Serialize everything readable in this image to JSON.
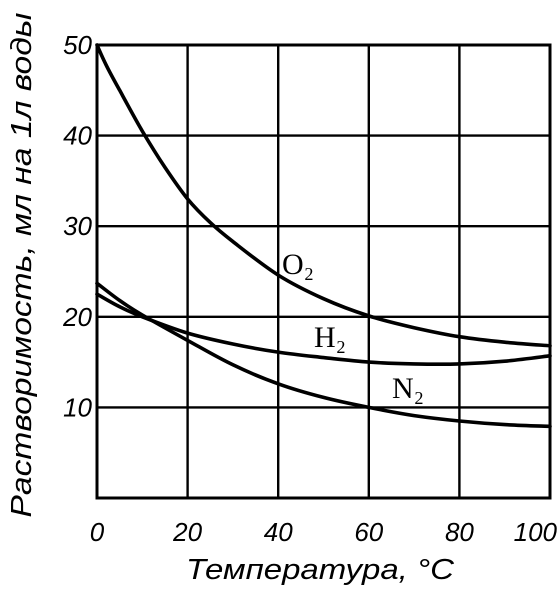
{
  "chart_data": {
    "type": "line",
    "xlabel": "Температура, °C",
    "ylabel": "Растворимость, мл на 1л воды",
    "xlim": [
      0,
      100
    ],
    "ylim": [
      0,
      50
    ],
    "xticks": [
      0,
      20,
      40,
      60,
      80,
      100
    ],
    "yticks": [
      10,
      20,
      30,
      40,
      50
    ],
    "grid": true,
    "series": [
      {
        "name": "O₂",
        "x": [
          0,
          2,
          5,
          10,
          15,
          20,
          25,
          30,
          40,
          50,
          60,
          70,
          80,
          90,
          100
        ],
        "y": [
          50,
          47.8,
          45,
          40.5,
          36.5,
          33,
          30.4,
          28.3,
          24.6,
          22,
          20.1,
          18.8,
          17.8,
          17.2,
          16.8
        ]
      },
      {
        "name": "H₂",
        "x": [
          0,
          5,
          10,
          20,
          30,
          40,
          50,
          60,
          70,
          80,
          90,
          100
        ],
        "y": [
          22.5,
          21.1,
          20,
          18.2,
          17,
          16.1,
          15.5,
          15,
          14.8,
          14.8,
          15.1,
          15.7
        ]
      },
      {
        "name": "N₂",
        "x": [
          0,
          5,
          10,
          20,
          30,
          40,
          50,
          60,
          70,
          80,
          90,
          100
        ],
        "y": [
          23.7,
          21.8,
          20.2,
          17.4,
          14.7,
          12.6,
          11.1,
          10,
          9.1,
          8.5,
          8.1,
          7.9
        ]
      }
    ]
  },
  "colors": {
    "line": "#000000",
    "background": "#ffffff"
  }
}
